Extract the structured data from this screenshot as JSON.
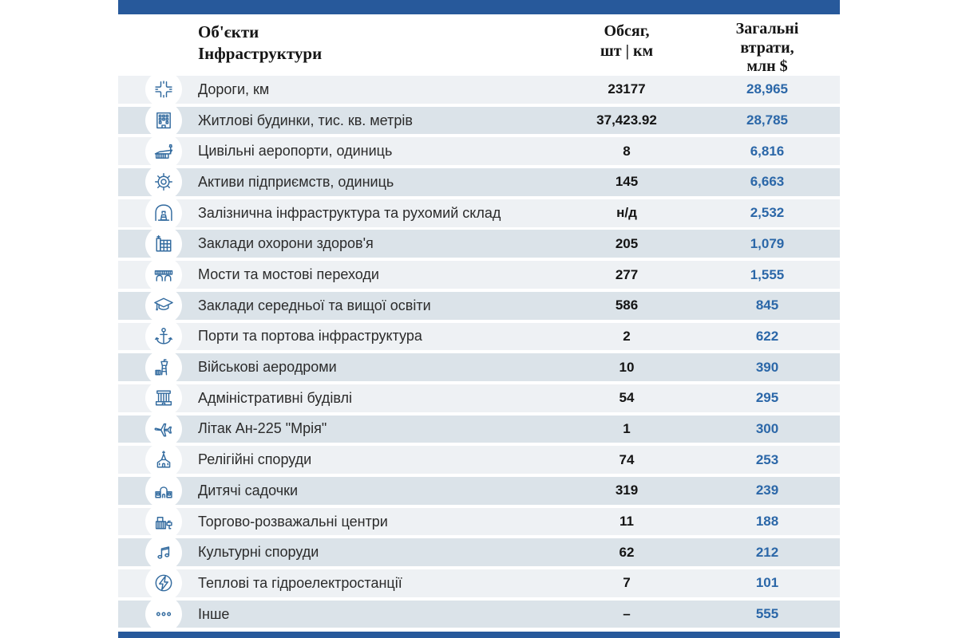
{
  "colors": {
    "top_bar": "#27599b",
    "bottom_bar": "#27599b",
    "row_light": "#eef1f4",
    "row_dark": "#dbe3e9",
    "losses_text": "#2b67a8",
    "volume_text": "#141414",
    "icon_stroke": "#336b9f"
  },
  "header": {
    "objects_line1": "Об'єкти",
    "objects_line2": "Інфраструктури",
    "volume_line1": "Обсяг,",
    "volume_line2": "шт | км",
    "losses_line1": "Загальні",
    "losses_line2": "втрати,",
    "losses_line3": "млн $"
  },
  "chart_data": {
    "type": "table",
    "columns": [
      "Об'єкти Інфраструктури",
      "Обсяг, шт | км",
      "Загальні втрати, млн $"
    ],
    "rows": [
      {
        "icon": "roads-icon",
        "object": "Дороги, км",
        "volume": "23177",
        "losses": "28,965"
      },
      {
        "icon": "apartment-building-icon",
        "object": "Житлові будинки, тис. кв. метрів",
        "volume": "37,423.92",
        "losses": "28,785"
      },
      {
        "icon": "civil-airport-icon",
        "object": "Цивільні аеропорти, одиниць",
        "volume": "8",
        "losses": "6,816"
      },
      {
        "icon": "gear-icon",
        "object": "Активи підприємств, одиниць",
        "volume": "145",
        "losses": "6,663"
      },
      {
        "icon": "railway-tunnel-icon",
        "object": "Залізнична інфраструктура та рухомий склад",
        "volume": "н/д",
        "losses": "2,532"
      },
      {
        "icon": "hospital-icon",
        "object": "Заклади охорони здоров'я",
        "volume": "205",
        "losses": "1,079"
      },
      {
        "icon": "bridge-icon",
        "object": "Мости та мостові переходи",
        "volume": "277",
        "losses": "1,555"
      },
      {
        "icon": "graduation-cap-icon",
        "object": "Заклади середньої та вищої освіти",
        "volume": "586",
        "losses": "845"
      },
      {
        "icon": "anchor-icon",
        "object": "Порти та портова інфраструктура",
        "volume": "2",
        "losses": "622"
      },
      {
        "icon": "control-tower-icon",
        "object": "Військові аеродроми",
        "volume": "10",
        "losses": "390"
      },
      {
        "icon": "admin-building-icon",
        "object": "Адміністративні будівлі",
        "volume": "54",
        "losses": "295"
      },
      {
        "icon": "airplane-icon",
        "object": "Літак Ан-225 \"Мрія\"",
        "volume": "1",
        "losses": "300"
      },
      {
        "icon": "church-icon",
        "object": "Релігійні споруди",
        "volume": "74",
        "losses": "253"
      },
      {
        "icon": "kindergarten-icon",
        "object": "Дитячі садочки",
        "volume": "319",
        "losses": "239"
      },
      {
        "icon": "mall-icon",
        "object": "Торгово-розважальні центри",
        "volume": "11",
        "losses": "188"
      },
      {
        "icon": "music-notes-icon",
        "object": "Культурні споруди",
        "volume": "62",
        "losses": "212"
      },
      {
        "icon": "power-plant-icon",
        "object": "Теплові та гідроелектростанції",
        "volume": "7",
        "losses": "101"
      },
      {
        "icon": "other-icon",
        "object": "Інше",
        "volume": "–",
        "losses": "555"
      }
    ]
  }
}
